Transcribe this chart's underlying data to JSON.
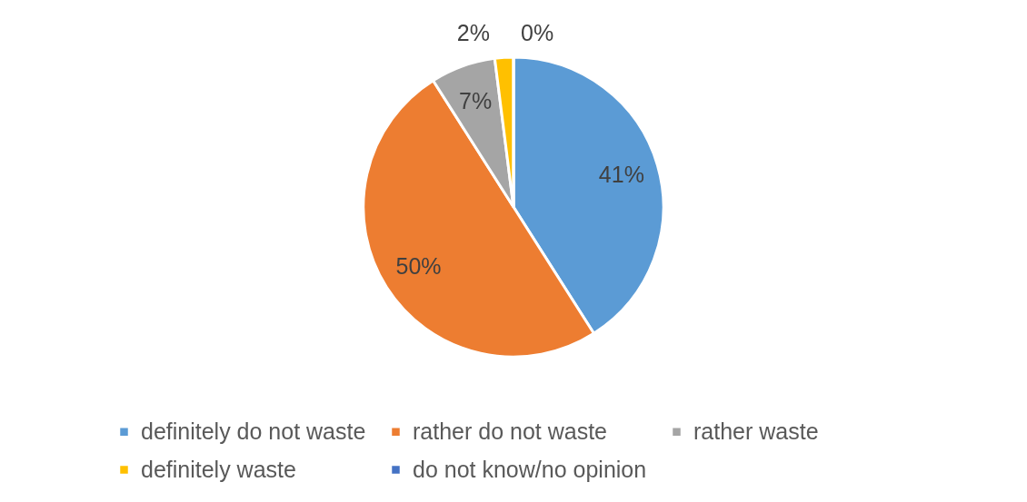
{
  "chart_data": {
    "type": "pie",
    "categories": [
      "definitely do not waste",
      "rather do not waste",
      "rather waste",
      "definitely waste",
      "do not know/no opinion"
    ],
    "values": [
      41,
      50,
      7,
      2,
      0
    ],
    "colors": [
      "#5b9bd5",
      "#ed7d31",
      "#a5a5a5",
      "#ffc000",
      "#4472c4"
    ],
    "value_labels": [
      "41%",
      "50%",
      "7%",
      "2%",
      "0%"
    ],
    "legend": "bottom"
  }
}
